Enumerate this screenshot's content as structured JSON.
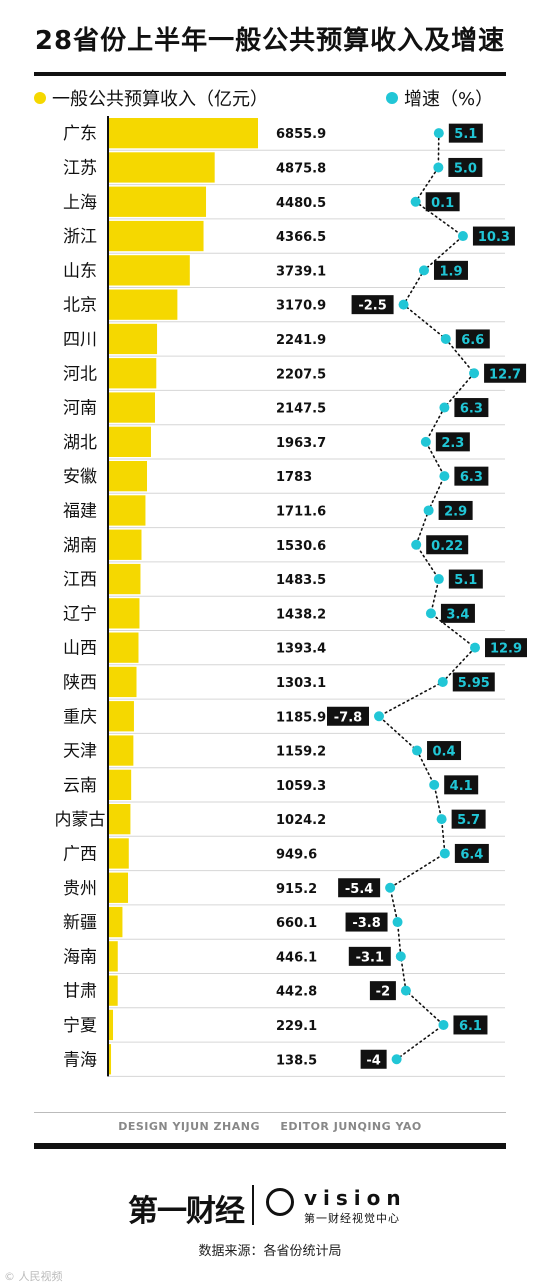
{
  "header": {
    "title": "28省份上半年一般公共预算收入及增速",
    "legend_revenue": "一般公共预算收入（亿元）",
    "legend_growth": "增速（%）"
  },
  "colors": {
    "bar": "#f5d800",
    "growth_dot": "#21c6d6",
    "positive_label_text": "#21c6d6",
    "negative_label_text": "#ffffff",
    "label_bg": "#111111"
  },
  "chart_data": {
    "type": "bar",
    "title": "28省份上半年一般公共预算收入及增速",
    "categories": [
      "广东",
      "江苏",
      "上海",
      "浙江",
      "山东",
      "北京",
      "四川",
      "河北",
      "河南",
      "湖北",
      "安徽",
      "福建",
      "湖南",
      "江西",
      "辽宁",
      "山西",
      "陕西",
      "重庆",
      "天津",
      "云南",
      "内蒙古",
      "广西",
      "贵州",
      "新疆",
      "海南",
      "甘肃",
      "宁夏",
      "青海"
    ],
    "series": [
      {
        "name": "一般公共预算收入（亿元）",
        "values": [
          6855.9,
          4875.8,
          4480.5,
          4366.5,
          3739.1,
          3170.9,
          2241.9,
          2207.5,
          2147.5,
          1963.7,
          1783,
          1711.6,
          1530.6,
          1483.5,
          1438.2,
          1393.4,
          1303.1,
          1185.9,
          1159.2,
          1059.3,
          1024.2,
          949.6,
          915.2,
          660.1,
          446.1,
          442.8,
          229.1,
          138.5
        ],
        "labels": [
          "6855.9",
          "4875.8",
          "4480.5",
          "4366.5",
          "3739.1",
          "3170.9",
          "2241.9",
          "2207.5",
          "2147.5",
          "1963.7",
          "1783",
          "1711.6",
          "1530.6",
          "1483.5",
          "1438.2",
          "1393.4",
          "1303.1",
          "1185.9",
          "1159.2",
          "1059.3",
          "1024.2",
          "949.6",
          "915.2",
          "660.1",
          "446.1",
          "442.8",
          "229.1",
          "138.5"
        ]
      },
      {
        "name": "增速（%）",
        "type": "line",
        "values": [
          5.1,
          5.0,
          0.1,
          10.3,
          1.9,
          -2.5,
          6.6,
          12.7,
          6.3,
          2.3,
          6.3,
          2.9,
          0.22,
          5.1,
          3.4,
          12.9,
          5.95,
          -7.8,
          0.4,
          4.1,
          5.7,
          6.4,
          -5.4,
          -3.8,
          -3.1,
          -2,
          6.1,
          -4
        ],
        "labels": [
          "5.1",
          "5.0",
          "0.1",
          "10.3",
          "1.9",
          "-2.5",
          "6.6",
          "12.7",
          "6.3",
          "2.3",
          "6.3",
          "2.9",
          "0.22",
          "5.1",
          "3.4",
          "12.9",
          "5.95",
          "-7.8",
          "0.4",
          "4.1",
          "5.7",
          "6.4",
          "-5.4",
          "-3.8",
          "-3.1",
          "-2",
          "6.1",
          "-4"
        ]
      }
    ]
  },
  "credits": {
    "design": "DESIGN YIJUN ZHANG",
    "editor": "EDITOR JUNQING YAO"
  },
  "footer": {
    "logo_main": "第一财经",
    "logo_vision": "vision",
    "logo_vision_sub": "第一财经视觉中心",
    "source": "数据来源：各省份统计局",
    "watermark": "© 人民视频"
  }
}
